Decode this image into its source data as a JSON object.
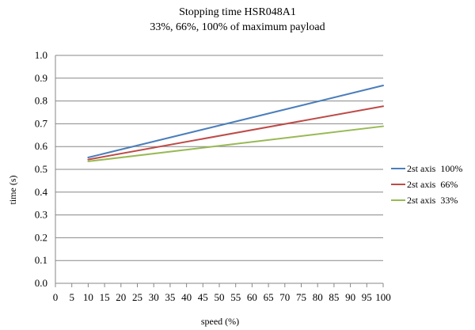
{
  "chart_data": {
    "type": "line",
    "title": "Stopping time HSR048A1",
    "subtitle": "33%, 66%, 100% of maximum payload",
    "xlabel": "speed (%)",
    "ylabel": "time (s)",
    "x": [
      10,
      100
    ],
    "xticks": [
      "0",
      "5",
      "10",
      "15",
      "20",
      "25",
      "30",
      "35",
      "40",
      "45",
      "50",
      "55",
      "60",
      "65",
      "70",
      "75",
      "80",
      "85",
      "90",
      "95",
      "100"
    ],
    "xlim": [
      0,
      100
    ],
    "ylim": [
      0.0,
      1.0
    ],
    "yticks": [
      "0.0",
      "0.1",
      "0.2",
      "0.3",
      "0.4",
      "0.5",
      "0.6",
      "0.7",
      "0.8",
      "0.9",
      "1.0"
    ],
    "grid": "horizontal",
    "legend_position": "right",
    "series": [
      {
        "name": "2st axis  100%",
        "color": "#4a7ebb",
        "values": [
          0.552,
          0.868
        ]
      },
      {
        "name": "2st axis  66%",
        "color": "#be4b48",
        "values": [
          0.543,
          0.777
        ]
      },
      {
        "name": "2st axis  33%",
        "color": "#98b954",
        "values": [
          0.535,
          0.689
        ]
      }
    ]
  }
}
